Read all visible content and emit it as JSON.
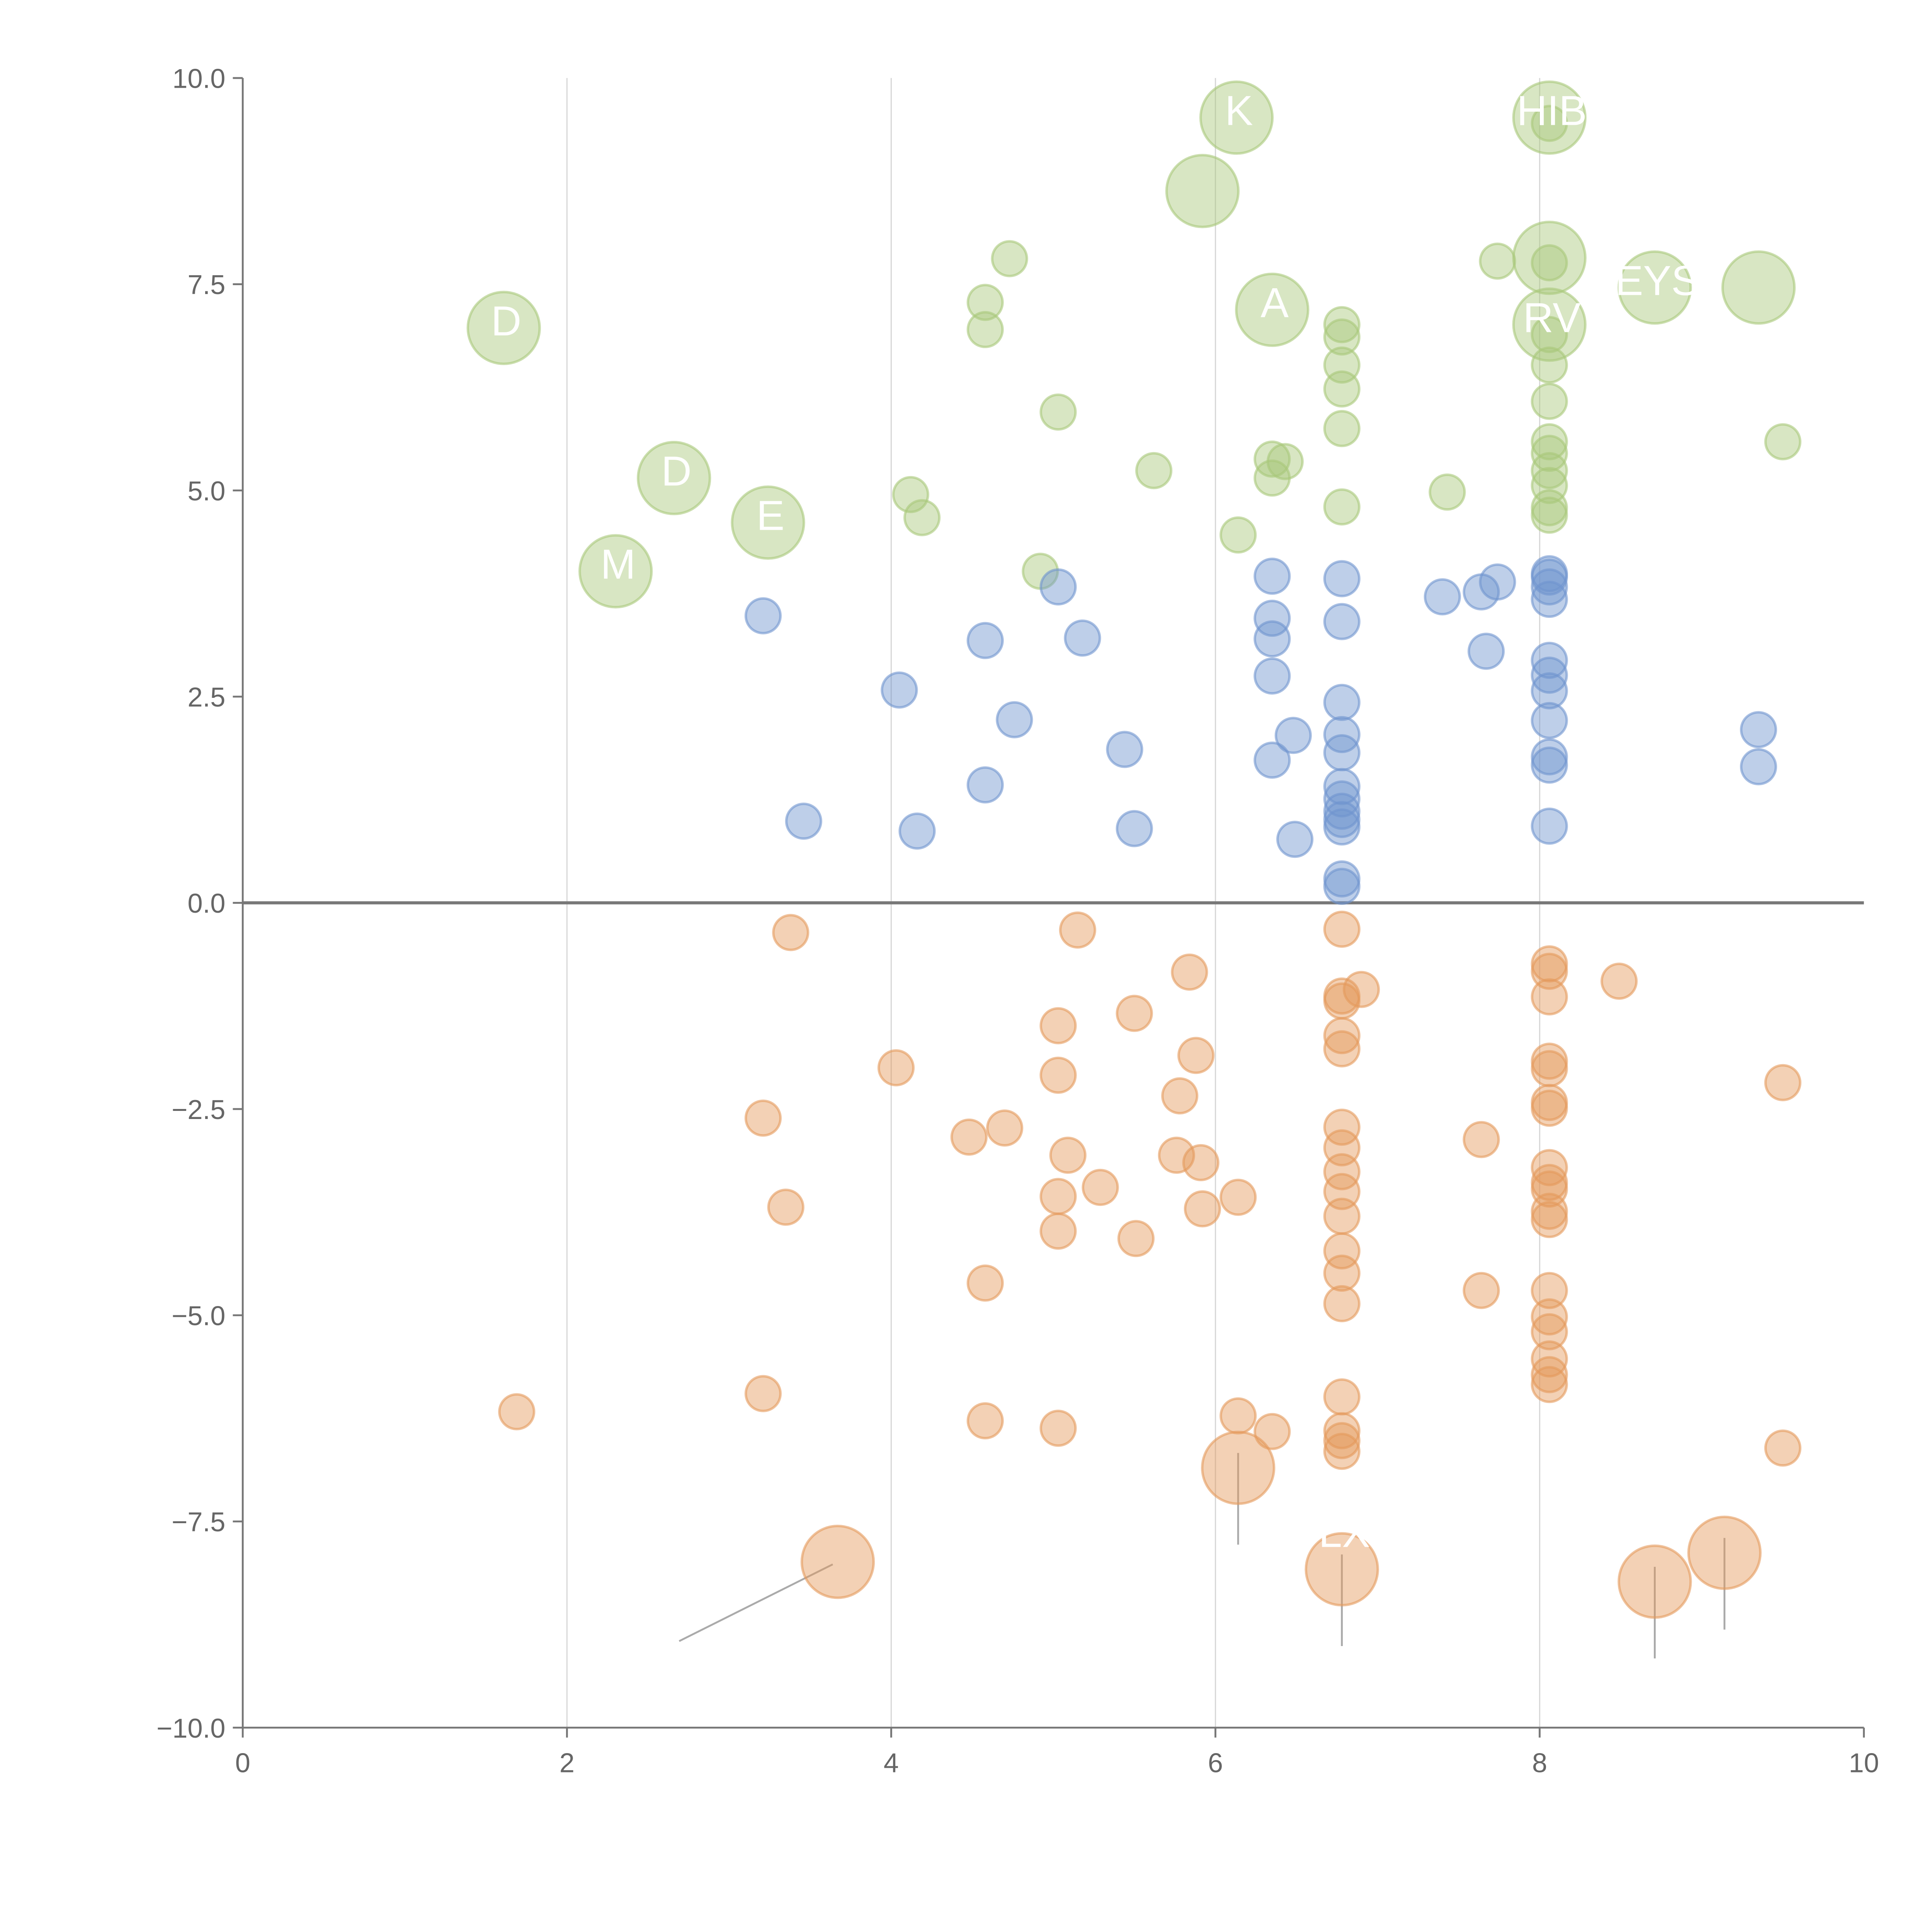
{
  "chart_data": {
    "type": "scatter",
    "title": "",
    "xlabel": "",
    "ylabel": "",
    "xlim": [
      0,
      10
    ],
    "ylim": [
      -10,
      10
    ],
    "x_ticks": [
      "0",
      "2",
      "4",
      "6",
      "8",
      "10"
    ],
    "y_ticks": [
      "−10.0",
      "−7.5",
      "−5.0",
      "−2.5",
      "0.0",
      "2.5",
      "5.0",
      "7.5",
      "10.0"
    ],
    "x_tick_values": [
      0,
      2,
      4,
      6,
      8,
      10
    ],
    "y_tick_values": [
      -10,
      -7.5,
      -5,
      -2.5,
      0,
      2.5,
      5,
      7.5,
      10
    ],
    "grid": "vertical",
    "colors": {
      "green": "#a8c87a",
      "blue": "#6f95cf",
      "orange": "#e59a5c",
      "axis": "#777777"
    },
    "series": [
      {
        "name": "green",
        "color": "green",
        "points": [
          [
            1.61,
            6.97,
            4
          ],
          [
            2.3,
            4.02,
            4
          ],
          [
            2.66,
            5.15,
            4
          ],
          [
            3.24,
            4.61,
            4
          ],
          [
            5.92,
            8.63,
            4
          ],
          [
            6.13,
            9.52,
            4
          ],
          [
            6.35,
            7.19,
            4
          ],
          [
            8.06,
            9.52,
            4
          ],
          [
            8.06,
            7.82,
            4
          ],
          [
            8.06,
            7.01,
            4
          ],
          [
            8.71,
            7.46,
            4
          ],
          [
            9.35,
            7.46,
            4
          ],
          [
            4.73,
            7.81,
            1
          ],
          [
            4.58,
            7.28,
            1
          ],
          [
            4.58,
            6.95,
            1
          ],
          [
            5.03,
            5.95,
            1
          ],
          [
            4.12,
            4.95,
            1
          ],
          [
            4.19,
            4.67,
            1
          ],
          [
            4.92,
            4.02,
            1
          ],
          [
            5.62,
            5.24,
            1
          ],
          [
            6.14,
            4.46,
            1
          ],
          [
            6.35,
            5.38,
            1
          ],
          [
            6.43,
            5.35,
            1
          ],
          [
            6.35,
            5.15,
            1
          ],
          [
            6.78,
            7.01,
            1
          ],
          [
            6.78,
            6.86,
            1
          ],
          [
            6.78,
            6.52,
            1
          ],
          [
            6.78,
            6.23,
            1
          ],
          [
            6.78,
            5.75,
            1
          ],
          [
            6.78,
            4.8,
            1
          ],
          [
            7.43,
            4.98,
            1
          ],
          [
            7.74,
            7.78,
            1
          ],
          [
            8.06,
            7.76,
            1
          ],
          [
            8.06,
            9.45,
            1
          ],
          [
            8.06,
            6.89,
            1
          ],
          [
            8.06,
            6.52,
            1
          ],
          [
            8.06,
            6.08,
            1
          ],
          [
            8.06,
            5.59,
            1
          ],
          [
            8.06,
            5.45,
            1
          ],
          [
            8.06,
            5.24,
            1
          ],
          [
            8.06,
            5.06,
            1
          ],
          [
            8.06,
            4.79,
            1
          ],
          [
            8.06,
            4.7,
            1
          ],
          [
            9.5,
            5.59,
            1
          ]
        ]
      },
      {
        "name": "blue",
        "color": "blue",
        "points": [
          [
            3.21,
            3.48,
            1
          ],
          [
            3.46,
            0.99,
            1
          ],
          [
            4.05,
            2.58,
            1
          ],
          [
            4.16,
            0.87,
            1
          ],
          [
            4.58,
            3.18,
            1
          ],
          [
            4.76,
            2.22,
            1
          ],
          [
            4.58,
            1.43,
            1
          ],
          [
            5.03,
            3.83,
            1
          ],
          [
            5.18,
            3.21,
            1
          ],
          [
            5.44,
            1.86,
            1
          ],
          [
            5.5,
            0.9,
            1
          ],
          [
            6.35,
            3.96,
            1
          ],
          [
            6.35,
            3.45,
            1
          ],
          [
            6.35,
            3.2,
            1
          ],
          [
            6.35,
            2.75,
            1
          ],
          [
            6.35,
            1.73,
            1
          ],
          [
            6.48,
            2.03,
            1
          ],
          [
            6.49,
            0.77,
            1
          ],
          [
            6.78,
            3.93,
            1
          ],
          [
            6.78,
            3.41,
            1
          ],
          [
            6.78,
            2.43,
            1
          ],
          [
            6.78,
            2.04,
            1
          ],
          [
            6.78,
            1.82,
            1
          ],
          [
            6.78,
            1.41,
            1
          ],
          [
            6.78,
            1.26,
            1
          ],
          [
            6.78,
            1.11,
            1
          ],
          [
            6.78,
            1.01,
            1
          ],
          [
            6.78,
            0.92,
            1
          ],
          [
            6.78,
            0.29,
            1
          ],
          [
            6.78,
            0.2,
            1
          ],
          [
            7.4,
            3.71,
            1
          ],
          [
            7.64,
            3.77,
            1
          ],
          [
            7.74,
            3.89,
            1
          ],
          [
            7.67,
            3.05,
            1
          ],
          [
            8.06,
            3.99,
            1
          ],
          [
            8.06,
            3.95,
            1
          ],
          [
            8.06,
            3.83,
            1
          ],
          [
            8.06,
            3.68,
            1
          ],
          [
            8.06,
            2.94,
            1
          ],
          [
            8.06,
            2.76,
            1
          ],
          [
            8.06,
            2.57,
            1
          ],
          [
            8.06,
            2.21,
            1
          ],
          [
            8.06,
            1.77,
            1
          ],
          [
            8.06,
            1.67,
            1
          ],
          [
            8.06,
            0.93,
            1
          ],
          [
            9.35,
            2.1,
            1
          ],
          [
            9.35,
            1.65,
            1
          ]
        ]
      },
      {
        "name": "orange",
        "color": "orange",
        "points": [
          [
            3.67,
            -7.99,
            4
          ],
          [
            6.14,
            -6.85,
            4
          ],
          [
            6.78,
            -8.08,
            4
          ],
          [
            8.71,
            -8.23,
            4
          ],
          [
            9.14,
            -7.88,
            4
          ],
          [
            1.69,
            -6.17,
            1
          ],
          [
            3.21,
            -2.61,
            1
          ],
          [
            3.21,
            -5.95,
            1
          ],
          [
            3.35,
            -3.69,
            1
          ],
          [
            3.38,
            -0.36,
            1
          ],
          [
            4.03,
            -2.0,
            1
          ],
          [
            4.48,
            -2.84,
            1
          ],
          [
            4.7,
            -2.73,
            1
          ],
          [
            4.58,
            -4.61,
            1
          ],
          [
            4.58,
            -6.28,
            1
          ],
          [
            5.03,
            -1.49,
            1
          ],
          [
            5.03,
            -2.09,
            1
          ],
          [
            5.09,
            -3.06,
            1
          ],
          [
            5.03,
            -3.56,
            1
          ],
          [
            5.03,
            -3.98,
            1
          ],
          [
            5.03,
            -6.37,
            1
          ],
          [
            5.15,
            -0.33,
            1
          ],
          [
            5.29,
            -3.45,
            1
          ],
          [
            5.5,
            -1.34,
            1
          ],
          [
            5.51,
            -4.07,
            1
          ],
          [
            5.84,
            -0.84,
            1
          ],
          [
            5.78,
            -2.34,
            1
          ],
          [
            5.88,
            -1.85,
            1
          ],
          [
            5.76,
            -3.06,
            1
          ],
          [
            5.91,
            -3.15,
            1
          ],
          [
            5.92,
            -3.71,
            1
          ],
          [
            6.14,
            -3.57,
            1
          ],
          [
            6.14,
            -6.22,
            1
          ],
          [
            6.35,
            -6.41,
            1
          ],
          [
            6.78,
            -0.32,
            1
          ],
          [
            6.78,
            -1.13,
            1
          ],
          [
            6.78,
            -1.19,
            1
          ],
          [
            6.78,
            -1.61,
            1
          ],
          [
            6.78,
            -1.77,
            1
          ],
          [
            6.78,
            -2.72,
            1
          ],
          [
            6.78,
            -2.97,
            1
          ],
          [
            6.78,
            -3.26,
            1
          ],
          [
            6.78,
            -3.5,
            1
          ],
          [
            6.78,
            -3.8,
            1
          ],
          [
            6.78,
            -4.22,
            1
          ],
          [
            6.78,
            -4.49,
            1
          ],
          [
            6.78,
            -4.86,
            1
          ],
          [
            6.78,
            -5.99,
            1
          ],
          [
            6.78,
            -6.4,
            1
          ],
          [
            6.78,
            -6.52,
            1
          ],
          [
            6.78,
            -6.65,
            1
          ],
          [
            6.9,
            -1.05,
            1
          ],
          [
            7.64,
            -2.87,
            1
          ],
          [
            7.64,
            -4.7,
            1
          ],
          [
            8.06,
            -0.74,
            1
          ],
          [
            8.06,
            -0.83,
            1
          ],
          [
            8.06,
            -1.14,
            1
          ],
          [
            8.06,
            -1.92,
            1
          ],
          [
            8.06,
            -2.01,
            1
          ],
          [
            8.06,
            -2.42,
            1
          ],
          [
            8.06,
            -2.49,
            1
          ],
          [
            8.06,
            -3.21,
            1
          ],
          [
            8.06,
            -3.39,
            1
          ],
          [
            8.06,
            -3.47,
            1
          ],
          [
            8.06,
            -3.74,
            1
          ],
          [
            8.06,
            -3.84,
            1
          ],
          [
            8.06,
            -4.7,
            1
          ],
          [
            8.06,
            -5.02,
            1
          ],
          [
            8.06,
            -5.2,
            1
          ],
          [
            8.06,
            -5.53,
            1
          ],
          [
            8.06,
            -5.72,
            1
          ],
          [
            8.06,
            -5.84,
            1
          ],
          [
            8.49,
            -0.95,
            1
          ],
          [
            9.5,
            -2.18,
            1
          ],
          [
            9.5,
            -6.61,
            1
          ]
        ]
      }
    ],
    "annotations": [
      {
        "text": "D",
        "x": 1.61,
        "y": 6.97
      },
      {
        "text": "M",
        "x": 2.3,
        "y": 4.02
      },
      {
        "text": "D",
        "x": 2.66,
        "y": 5.15
      },
      {
        "text": "E",
        "x": 3.24,
        "y": 4.61
      },
      {
        "text": "K",
        "x": 6.13,
        "y": 9.52
      },
      {
        "text": "A",
        "x": 6.35,
        "y": 7.19
      },
      {
        "text": "HIB",
        "x": 8.06,
        "y": 9.52
      },
      {
        "text": "RV",
        "x": 8.06,
        "y": 7.01
      },
      {
        "text": "EYS",
        "x": 8.71,
        "y": 7.46
      },
      {
        "text": "LX",
        "x": 6.78,
        "y": -8.08
      }
    ]
  }
}
